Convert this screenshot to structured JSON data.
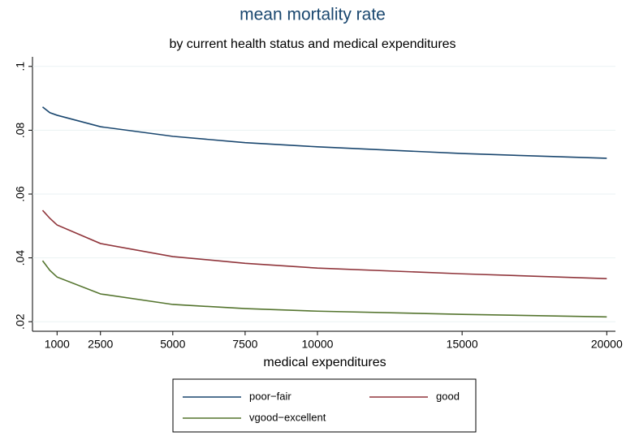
{
  "chart_data": {
    "type": "line",
    "title": "mean mortality rate",
    "subtitle": "by current health status and medical expenditures",
    "x_label": "medical expenditures",
    "x": [
      500,
      750,
      1000,
      2500,
      5000,
      7500,
      10000,
      15000,
      20000
    ],
    "series": [
      {
        "name": "poor−fair",
        "color": "#1a476f",
        "values": [
          0.0873,
          0.0855,
          0.0847,
          0.0811,
          0.0781,
          0.0761,
          0.0748,
          0.0727,
          0.0712
        ]
      },
      {
        "name": "good",
        "color": "#90353b",
        "values": [
          0.0549,
          0.0524,
          0.0503,
          0.0445,
          0.0404,
          0.0383,
          0.0368,
          0.035,
          0.0335
        ]
      },
      {
        "name": "vgood−excellent",
        "color": "#55752f",
        "values": [
          0.0391,
          0.0361,
          0.034,
          0.0287,
          0.0254,
          0.0241,
          0.0233,
          0.0223,
          0.0215
        ]
      }
    ],
    "xlim": [
      150,
      20300
    ],
    "xticks": [
      1000,
      2500,
      5000,
      7500,
      10000,
      15000,
      20000
    ],
    "ylim": [
      0.017,
      0.103
    ],
    "yticks": [
      {
        "value": 0.02,
        "label": ".02"
      },
      {
        "value": 0.04,
        "label": ".04"
      },
      {
        "value": 0.06,
        "label": ".06"
      },
      {
        "value": 0.08,
        "label": ".08"
      },
      {
        "value": 0.1,
        "label": ".1"
      }
    ],
    "grid": true
  }
}
